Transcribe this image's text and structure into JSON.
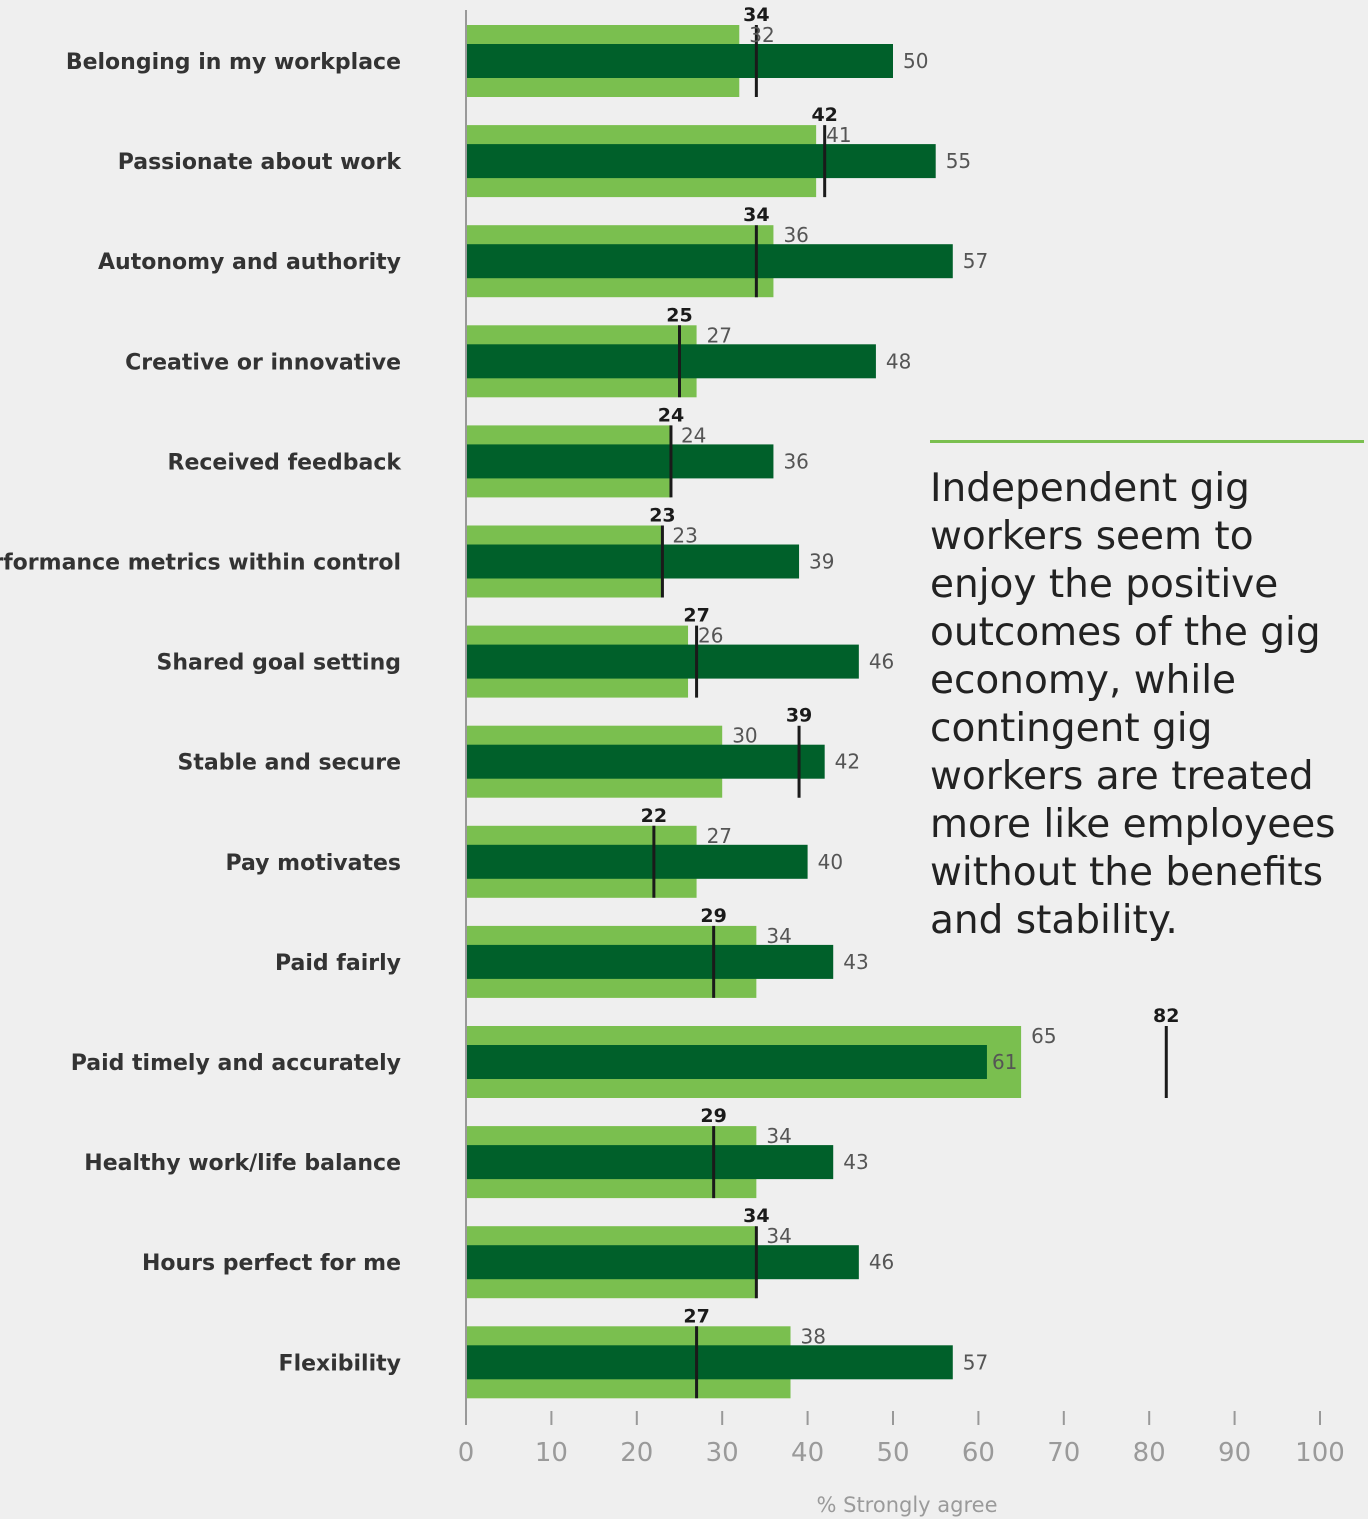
{
  "chart_data": {
    "type": "bar",
    "xlabel": "% Strongly agree",
    "xlim": [
      0,
      100
    ],
    "xticks": [
      0,
      10,
      20,
      30,
      40,
      50,
      60,
      70,
      80,
      90,
      100
    ],
    "categories": [
      "Belonging in my workplace",
      "Passionate about work",
      "Autonomy and authority",
      "Creative or innovative",
      "Received feedback",
      "Performance metrics within control",
      "Shared goal setting",
      "Stable and secure",
      "Pay motivates",
      "Paid fairly",
      "Paid timely and accurately",
      "Healthy work/life balance",
      "Hours perfect for me",
      "Flexibility"
    ],
    "series": [
      {
        "values": [
          32,
          41,
          36,
          27,
          24,
          23,
          26,
          30,
          27,
          34,
          65,
          34,
          34,
          38
        ],
        "color": "#7abf4f",
        "style": "wide-bar"
      },
      {
        "values": [
          50,
          55,
          57,
          48,
          36,
          39,
          46,
          42,
          40,
          43,
          61,
          43,
          46,
          57
        ],
        "color": "#00602a",
        "style": "narrow-bar"
      },
      {
        "values": [
          34,
          42,
          34,
          25,
          24,
          23,
          27,
          39,
          22,
          29,
          82,
          29,
          34,
          27
        ],
        "color": "#1a1a1a",
        "style": "marker"
      }
    ],
    "grid": false
  },
  "annotation": {
    "text": "Independent gig workers seem to enjoy the positive outcomes of the gig economy, while contingent gig workers are treated more like employees without the benefits and stability."
  }
}
